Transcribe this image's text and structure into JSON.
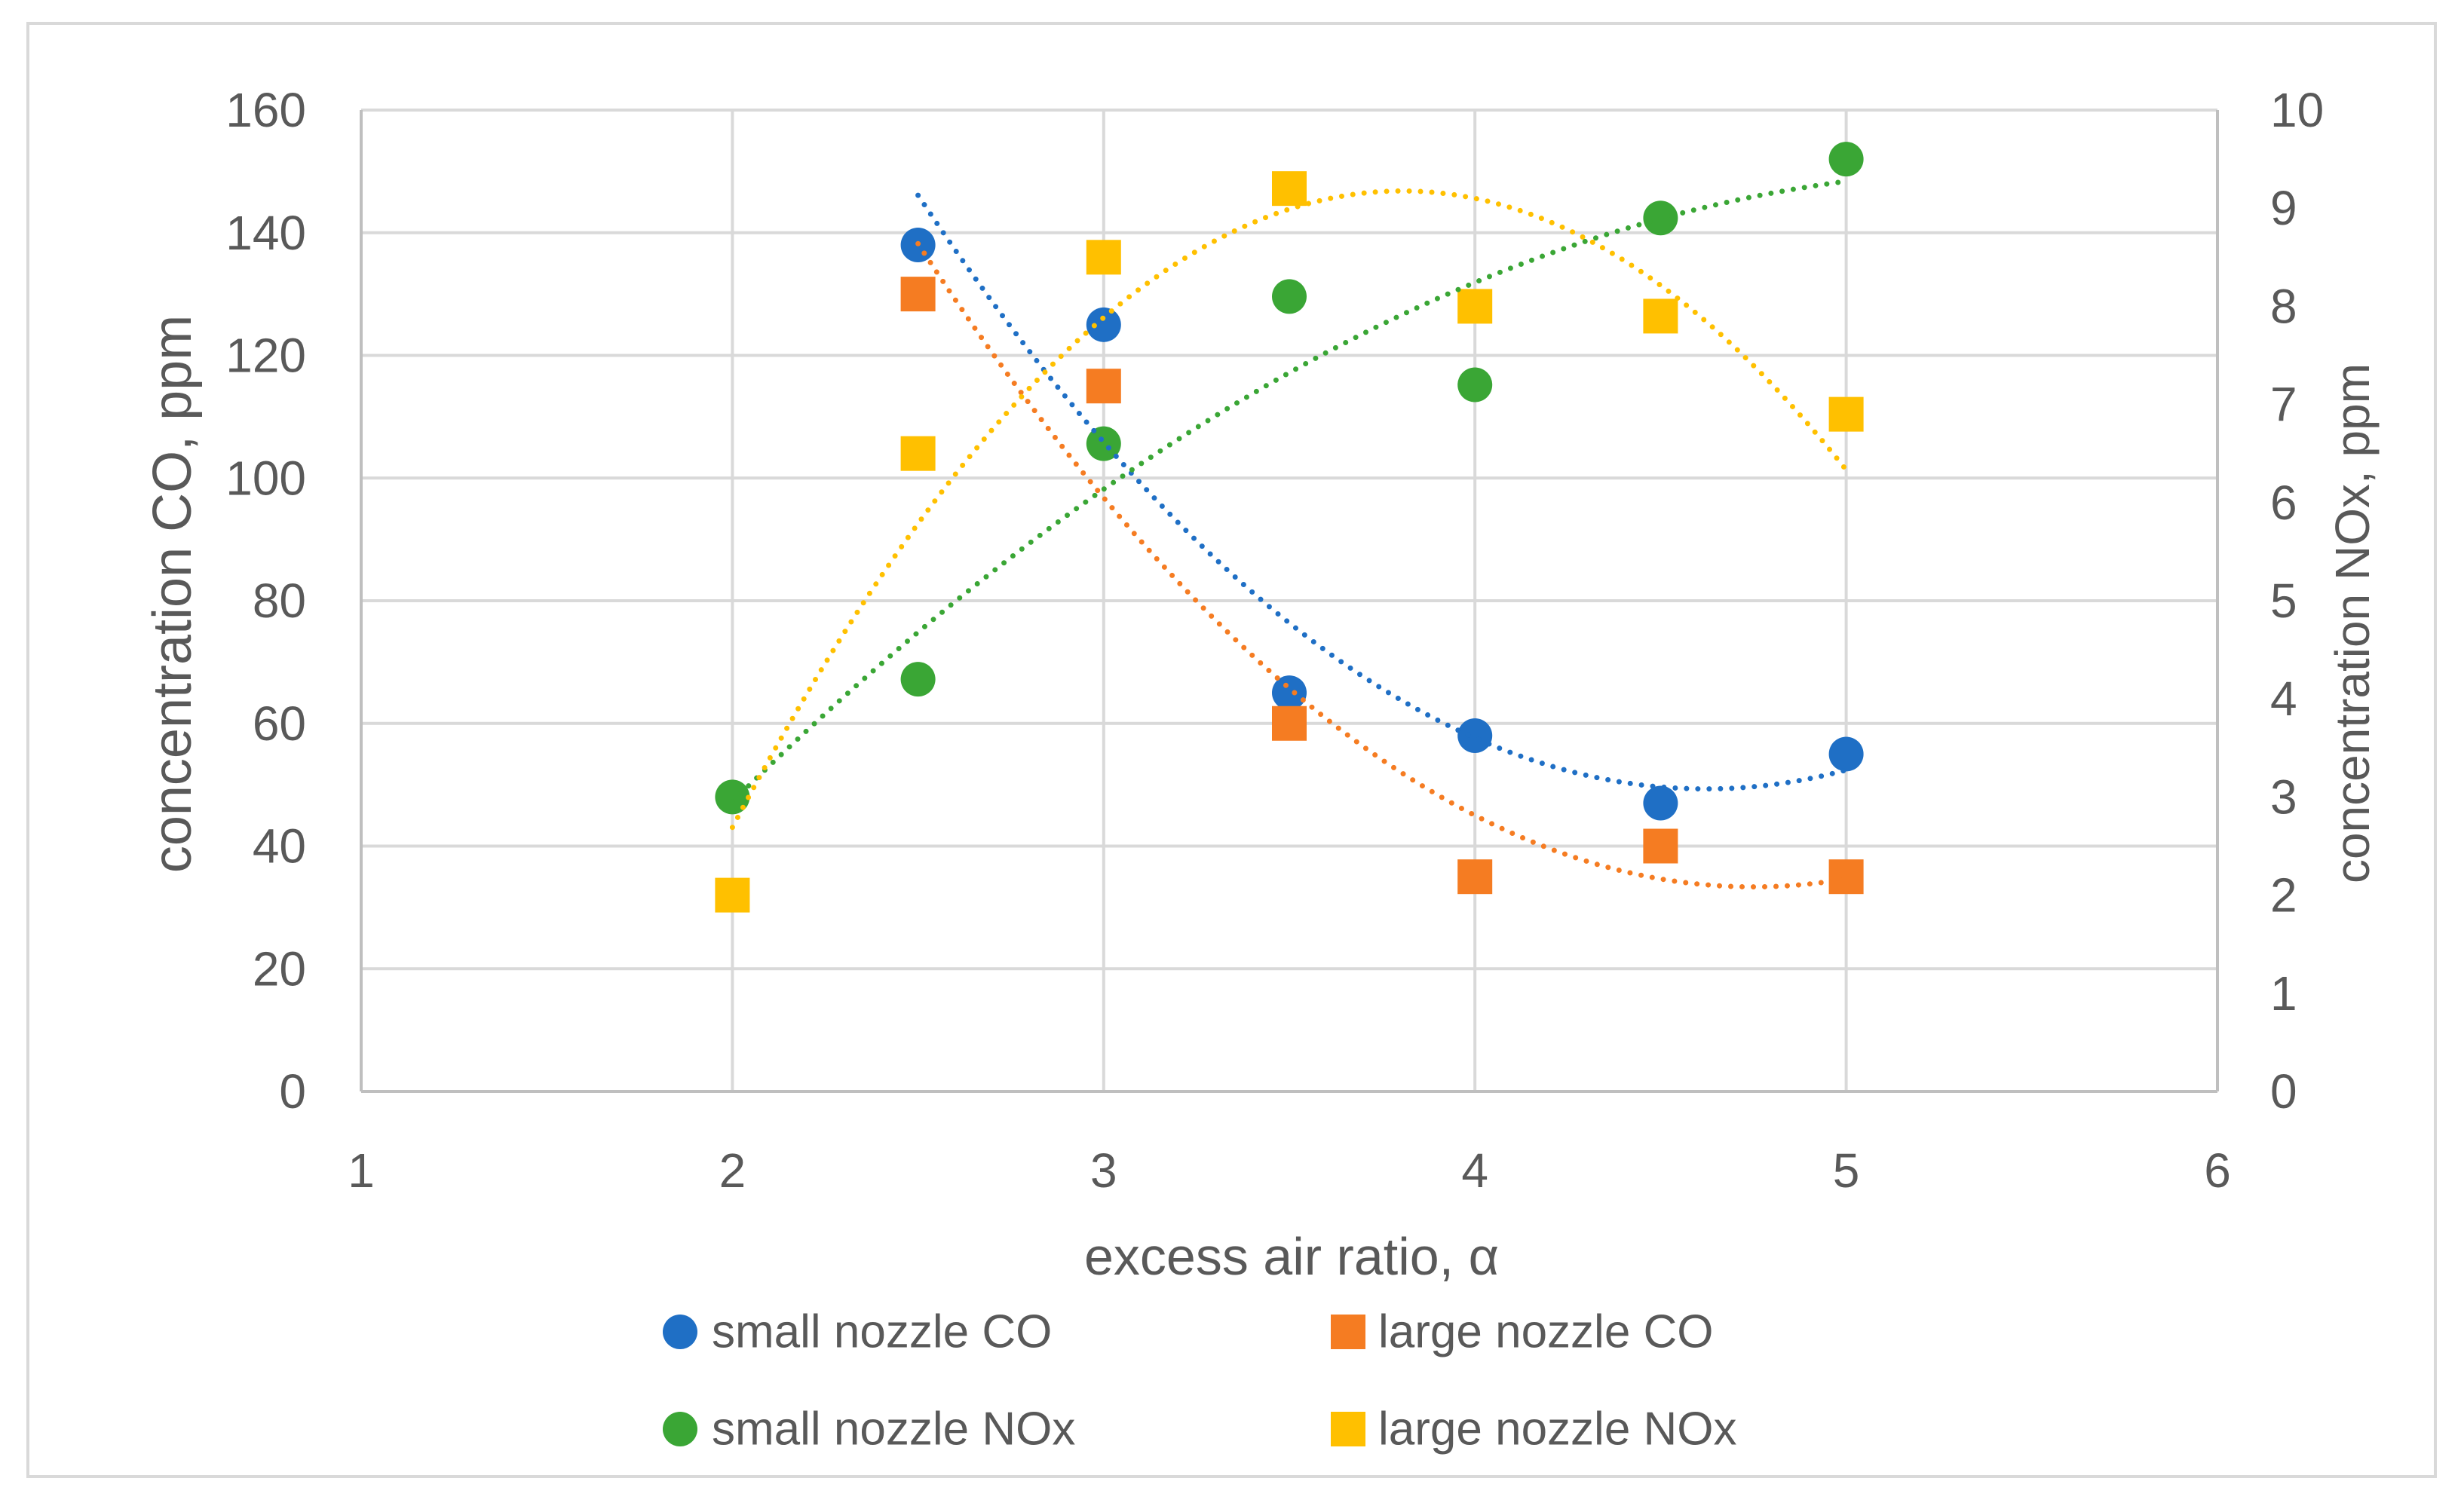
{
  "chart_data": {
    "type": "scatter",
    "xlabel": "excess air ratio, α",
    "ylabel": "concentration CO, ppm",
    "y2label": "concentration NOx, ppm",
    "xlim": [
      1,
      6
    ],
    "ylim": [
      0,
      160
    ],
    "y2lim": [
      0,
      10
    ],
    "xticks": [
      1,
      2,
      3,
      4,
      5,
      6
    ],
    "yticks": [
      0,
      20,
      40,
      60,
      80,
      100,
      120,
      140,
      160
    ],
    "y2ticks": [
      0,
      1,
      2,
      3,
      4,
      5,
      6,
      7,
      8,
      9,
      10
    ],
    "grid": true,
    "legend": "bottom",
    "series": [
      {
        "name": "small nozzle CO",
        "y_axis": 1,
        "marker": "circle",
        "color": "#1f6fc5",
        "trend_order": 2,
        "x": [
          2.5,
          3,
          3.5,
          4,
          4.5,
          5
        ],
        "y": [
          138,
          125,
          65,
          58,
          47,
          55
        ]
      },
      {
        "name": "large nozzle CO",
        "y_axis": 1,
        "marker": "square",
        "color": "#f57c22",
        "trend_order": 2,
        "x": [
          2.5,
          3,
          3.5,
          4,
          4.5,
          5
        ],
        "y": [
          130,
          115,
          60,
          35,
          40,
          35
        ]
      },
      {
        "name": "small nozzle NOx",
        "y_axis": 2,
        "marker": "circle",
        "color": "#3aa635",
        "trend_order": 2,
        "x": [
          2,
          2.5,
          3,
          3.5,
          4,
          4.5,
          5
        ],
        "y": [
          3.0,
          4.2,
          6.6,
          8.1,
          7.2,
          8.9,
          9.5
        ]
      },
      {
        "name": "large nozzle NOx",
        "y_axis": 2,
        "marker": "square",
        "color": "#ffc000",
        "trend_order": 2,
        "x": [
          2,
          2.5,
          3,
          3.5,
          4,
          4.5,
          5
        ],
        "y": [
          2.0,
          6.5,
          8.5,
          9.2,
          8.0,
          7.9,
          6.9
        ]
      }
    ]
  }
}
